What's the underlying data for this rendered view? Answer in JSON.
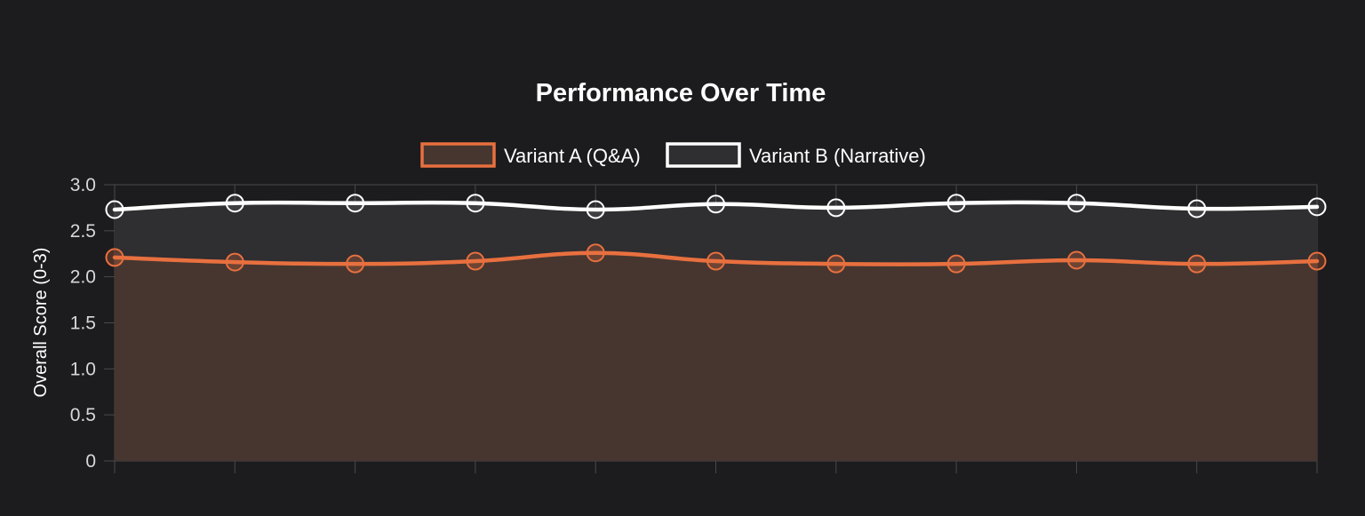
{
  "chart_data": {
    "type": "line",
    "title": "Performance Over Time",
    "xlabel": "",
    "ylabel": "Overall Score (0-3)",
    "ylim": [
      0,
      3
    ],
    "yticks": [
      "0",
      "0.5",
      "1.0",
      "1.5",
      "2.0",
      "2.5",
      "3.0"
    ],
    "x_count": 11,
    "grid": true,
    "legend_position": "top",
    "series": [
      {
        "name": "Variant A (Q&A)",
        "color": "#e8703f",
        "fill": "#46362f",
        "values": [
          2.21,
          2.16,
          2.14,
          2.17,
          2.26,
          2.17,
          2.14,
          2.14,
          2.18,
          2.14,
          2.17
        ]
      },
      {
        "name": "Variant B (Narrative)",
        "color": "#ffffff",
        "fill": "#2f2e31",
        "values": [
          2.73,
          2.8,
          2.8,
          2.8,
          2.73,
          2.79,
          2.75,
          2.8,
          2.8,
          2.74,
          2.76
        ]
      }
    ]
  }
}
